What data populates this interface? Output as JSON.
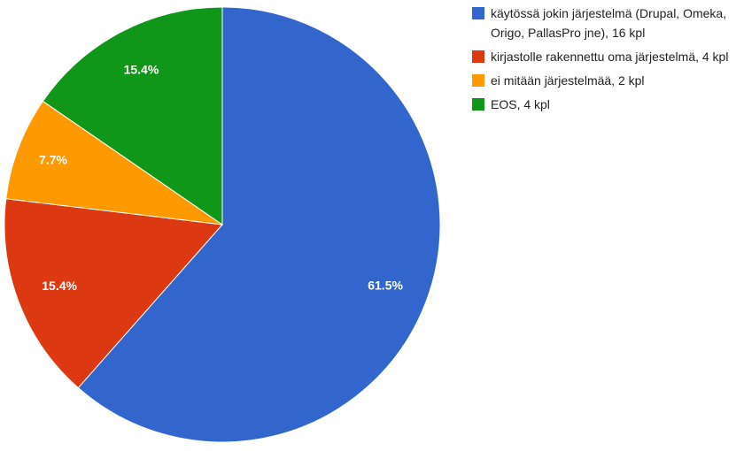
{
  "chart_data": {
    "type": "pie",
    "categories": [
      "käytössä jokin järjestelmä (Drupal, Omeka, Origo, PallasPro jne), 16 kpl",
      "kirjastolle rakennettu oma järjestelmä, 4 kpl",
      "ei mitään järjestelmää, 2 kpl",
      "EOS, 4 kpl"
    ],
    "values": [
      61.5,
      15.4,
      7.7,
      15.4
    ],
    "value_labels": [
      "61.5%",
      "15.4%",
      "7.7%",
      "15.4%"
    ],
    "colors": [
      "#3366cc",
      "#dc3912",
      "#ff9900",
      "#109618"
    ],
    "legend": "right"
  }
}
